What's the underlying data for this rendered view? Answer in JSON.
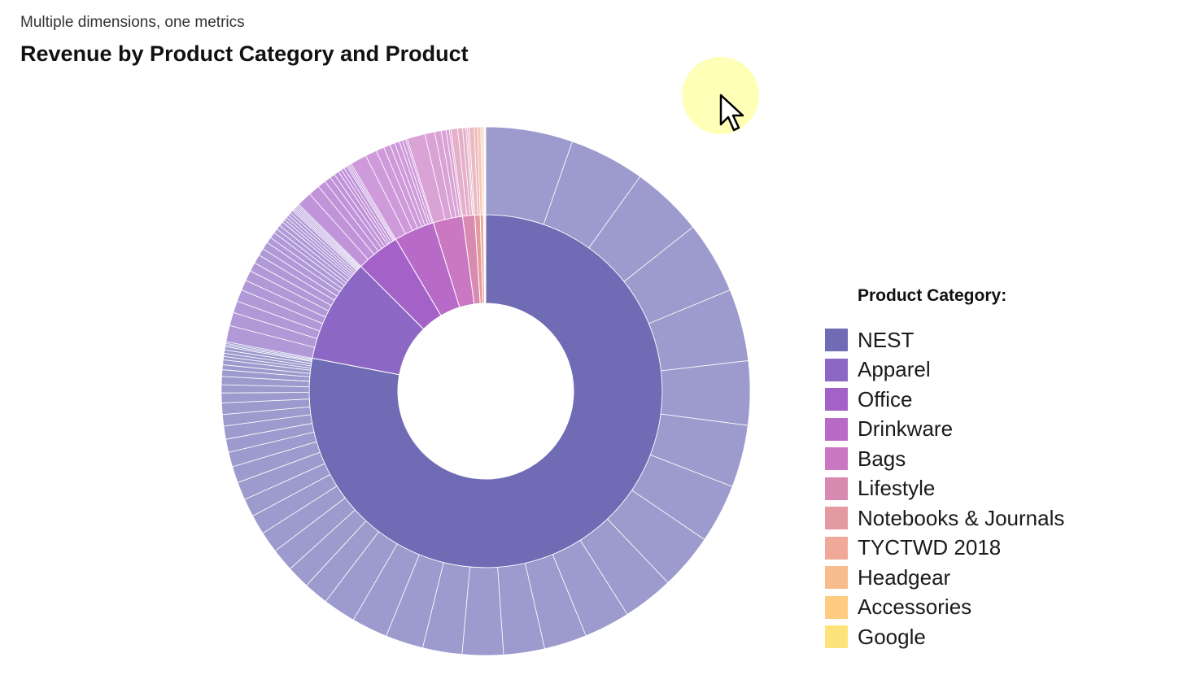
{
  "header": {
    "subtitle": "Multiple dimensions, one metrics",
    "title": "Revenue by Product Category and Product"
  },
  "legend": {
    "title": "Product Category:",
    "items": [
      {
        "label": "NEST",
        "color": "#6f6bb5"
      },
      {
        "label": "Apparel",
        "color": "#8c68c4"
      },
      {
        "label": "Office",
        "color": "#a462c8"
      },
      {
        "label": "Drinkware",
        "color": "#b86ac8"
      },
      {
        "label": "Bags",
        "color": "#c978c1"
      },
      {
        "label": "Lifestyle",
        "color": "#d98ab0"
      },
      {
        "label": "Notebooks & Journals",
        "color": "#e39aa0"
      },
      {
        "label": "TYCTWD 2018",
        "color": "#f0a898"
      },
      {
        "label": "Headgear",
        "color": "#f8bb8c"
      },
      {
        "label": "Accessories",
        "color": "#fdcc80"
      },
      {
        "label": "Google",
        "color": "#fde37a"
      }
    ]
  },
  "chart_data": {
    "type": "sunburst",
    "title": "Revenue by Product Category and Product",
    "subtitle": "Multiple dimensions, one metrics",
    "legend_title": "Product Category:",
    "legend_position": "right",
    "inner_ring": [
      {
        "category": "NEST",
        "share": 0.78
      },
      {
        "category": "Apparel",
        "share": 0.095
      },
      {
        "category": "Office",
        "share": 0.04
      },
      {
        "category": "Drinkware",
        "share": 0.037
      },
      {
        "category": "Bags",
        "share": 0.027
      },
      {
        "category": "Lifestyle",
        "share": 0.011
      },
      {
        "category": "Notebooks & Journals",
        "share": 0.005
      },
      {
        "category": "TYCTWD 2018",
        "share": 0.003
      },
      {
        "category": "Headgear",
        "share": 0.001
      },
      {
        "category": "Accessories",
        "share": 0.0005
      },
      {
        "category": "Google",
        "share": 0.0005
      }
    ],
    "outer_ring": [
      {
        "category": "NEST",
        "products": [
          0.053,
          0.046,
          0.044,
          0.044,
          0.044,
          0.039,
          0.038,
          0.036,
          0.034,
          0.031,
          0.028,
          0.026,
          0.025,
          0.025,
          0.024,
          0.023,
          0.022,
          0.02,
          0.015,
          0.014,
          0.014,
          0.013,
          0.012,
          0.011,
          0.011,
          0.01,
          0.009,
          0.008,
          0.008,
          0.007,
          0.007,
          0.006,
          0.005,
          0.005,
          0.004,
          0.003,
          0.003,
          0.002,
          0.002,
          0.002,
          0.002,
          0.001,
          0.001,
          0.001
        ]
      },
      {
        "category": "Apparel",
        "products": [
          0.011,
          0.009,
          0.008,
          0.008,
          0.007,
          0.007,
          0.006,
          0.006,
          0.005,
          0.005,
          0.004,
          0.004,
          0.003,
          0.003,
          0.003,
          0.002,
          0.002,
          0.002,
          0.002,
          0.002,
          0.001,
          0.001,
          0.001,
          0.001,
          0.001,
          0.001
        ]
      },
      {
        "category": "Office",
        "products": [
          0.009,
          0.007,
          0.005,
          0.004,
          0.003,
          0.003,
          0.002,
          0.002,
          0.002,
          0.001,
          0.001,
          0.001
        ]
      },
      {
        "category": "Drinkware",
        "products": [
          0.01,
          0.007,
          0.005,
          0.004,
          0.003,
          0.003,
          0.002,
          0.002,
          0.001
        ]
      },
      {
        "category": "Bags",
        "products": [
          0.011,
          0.006,
          0.004,
          0.003,
          0.002,
          0.001
        ]
      },
      {
        "category": "Lifestyle",
        "products": [
          0.004,
          0.003,
          0.002,
          0.001,
          0.001
        ]
      },
      {
        "category": "Notebooks & Journals",
        "products": [
          0.003,
          0.002
        ]
      },
      {
        "category": "TYCTWD 2018",
        "products": [
          0.002,
          0.001
        ]
      },
      {
        "category": "Headgear",
        "products": [
          0.001
        ]
      },
      {
        "category": "Accessories",
        "products": [
          0.0005
        ]
      },
      {
        "category": "Google",
        "products": [
          0.0005
        ]
      }
    ]
  }
}
